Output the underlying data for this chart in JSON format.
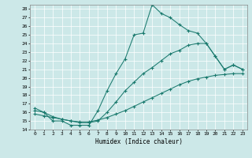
{
  "xlabel": "Humidex (Indice chaleur)",
  "bg_color": "#cce8e8",
  "line_color": "#1a7a6e",
  "xlim": [
    -0.5,
    23.5
  ],
  "ylim": [
    14,
    28.5
  ],
  "yticks": [
    14,
    15,
    16,
    17,
    18,
    19,
    20,
    21,
    22,
    23,
    24,
    25,
    26,
    27,
    28
  ],
  "xticks": [
    0,
    1,
    2,
    3,
    4,
    5,
    6,
    7,
    8,
    9,
    10,
    11,
    12,
    13,
    14,
    15,
    16,
    17,
    18,
    19,
    20,
    21,
    22,
    23
  ],
  "xtick_labels": [
    "0",
    "1",
    "2",
    "3",
    "4",
    "5",
    "6",
    "7",
    "8",
    "9",
    "10",
    "11",
    "12",
    "13",
    "14",
    "15",
    "16",
    "17",
    "18",
    "19",
    "20",
    "21",
    "22",
    "23"
  ],
  "line1_x": [
    0,
    1,
    2,
    3,
    4,
    5,
    6,
    7,
    8,
    9,
    10,
    11,
    12,
    13,
    14,
    15,
    16,
    17,
    18,
    19,
    20,
    21,
    22,
    23
  ],
  "line1_y": [
    16.5,
    16.0,
    15.0,
    15.0,
    14.5,
    14.5,
    14.5,
    16.2,
    18.5,
    20.5,
    22.2,
    25.0,
    25.2,
    28.5,
    27.5,
    27.0,
    26.2,
    25.5,
    25.2,
    24.0,
    22.5,
    21.0,
    21.5,
    21.0
  ],
  "line2_x": [
    0,
    1,
    2,
    3,
    4,
    5,
    6,
    7,
    8,
    9,
    10,
    11,
    12,
    13,
    14,
    15,
    16,
    17,
    18,
    19,
    20,
    21,
    22,
    23
  ],
  "line2_y": [
    16.2,
    16.0,
    15.5,
    15.2,
    15.0,
    14.8,
    14.8,
    15.0,
    16.0,
    17.2,
    18.5,
    19.5,
    20.5,
    21.2,
    22.0,
    22.8,
    23.2,
    23.8,
    24.0,
    24.0,
    22.5,
    21.0,
    21.5,
    21.0
  ],
  "line3_x": [
    0,
    1,
    2,
    3,
    4,
    5,
    6,
    7,
    8,
    9,
    10,
    11,
    12,
    13,
    14,
    15,
    16,
    17,
    18,
    19,
    20,
    21,
    22,
    23
  ],
  "line3_y": [
    15.8,
    15.6,
    15.4,
    15.2,
    15.0,
    14.9,
    14.9,
    15.1,
    15.4,
    15.8,
    16.2,
    16.7,
    17.2,
    17.7,
    18.2,
    18.7,
    19.2,
    19.6,
    19.9,
    20.1,
    20.3,
    20.4,
    20.5,
    20.5
  ]
}
